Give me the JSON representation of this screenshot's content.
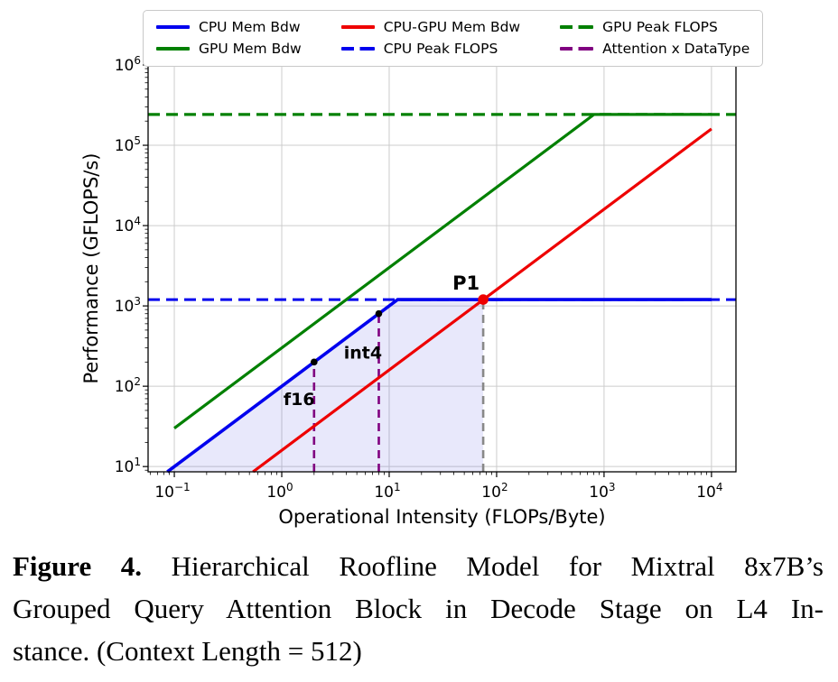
{
  "caption": {
    "label": "Figure 4.",
    "line1": "Hierarchical Roofline Model for Mixtral 8x7B’s",
    "line2": "Grouped Query Attention Block in Decode Stage on L4 In-",
    "line3": "stance. (Context Length = 512)"
  },
  "legend": {
    "items": [
      {
        "label": "CPU Mem Bdw",
        "color": "#0000ee",
        "dash": false
      },
      {
        "label": "CPU-GPU Mem Bdw",
        "color": "#ee0000",
        "dash": false
      },
      {
        "label": "GPU Peak FLOPS",
        "color": "#008000",
        "dash": true
      },
      {
        "label": "GPU Mem Bdw",
        "color": "#008000",
        "dash": false
      },
      {
        "label": "CPU Peak FLOPS",
        "color": "#0000ee",
        "dash": true
      },
      {
        "label": "Attention x DataType",
        "color": "#800080",
        "dash": true
      }
    ]
  },
  "chart_data": {
    "type": "line",
    "title": "",
    "xlabel": "Operational Intensity (FLOPs/Byte)",
    "ylabel": "Performance (GFLOPS/s)",
    "xscale": "log",
    "yscale": "log",
    "xlim": [
      0.057,
      16900
    ],
    "ylim": [
      8.6,
      1000000
    ],
    "x_tick_exponents": [
      -1,
      0,
      1,
      2,
      3,
      4
    ],
    "y_tick_exponents": [
      1,
      2,
      3,
      4,
      5,
      6
    ],
    "grid": true,
    "legend_position": "top-outside",
    "hardware": {
      "cpu_mem_bandwidth_GBps": 100,
      "gpu_mem_bandwidth_GBps": 300,
      "cpu_gpu_mem_bandwidth_GBps": 16,
      "cpu_peak_GFLOPS": 1200,
      "gpu_peak_GFLOPS": 242000
    },
    "series": [
      {
        "name": "GPU Peak FLOPS",
        "color": "#008000",
        "style": "dashed",
        "dash": "13 7",
        "width": 3.2,
        "points": [
          [
            0.057,
            242000
          ],
          [
            16900,
            242000
          ]
        ]
      },
      {
        "name": "CPU Peak FLOPS",
        "color": "#0000ee",
        "style": "dashed",
        "dash": "13 7",
        "width": 3,
        "points": [
          [
            0.057,
            1200
          ],
          [
            16900,
            1200
          ]
        ]
      },
      {
        "name": "Attention f16",
        "color": "#800080",
        "style": "dashed",
        "dash": "9 6",
        "width": 2.6,
        "points": [
          [
            2,
            8.6
          ],
          [
            2,
            200
          ]
        ]
      },
      {
        "name": "Attention int4",
        "color": "#800080",
        "style": "dashed",
        "dash": "9 6",
        "width": 2.6,
        "points": [
          [
            8,
            8.6
          ],
          [
            8,
            800
          ]
        ]
      },
      {
        "name": "P1 drop line",
        "color": "#888888",
        "style": "dashed",
        "dash": "9 6",
        "width": 2.6,
        "points": [
          [
            75,
            8.6
          ],
          [
            75,
            1200
          ]
        ]
      },
      {
        "name": "GPU Mem Bdw",
        "color": "#008000",
        "style": "solid",
        "width": 3.2,
        "points": [
          [
            0.1,
            30
          ],
          [
            807,
            242000
          ],
          [
            10000,
            242000
          ]
        ]
      },
      {
        "name": "CPU-GPU Mem Bdw",
        "color": "#ee0000",
        "style": "solid",
        "width": 3.2,
        "points": [
          [
            0.54,
            8.6
          ],
          [
            10000,
            160000
          ]
        ]
      },
      {
        "name": "CPU Mem Bdw",
        "color": "#0000ee",
        "style": "solid",
        "width": 3.6,
        "points": [
          [
            0.086,
            8.6
          ],
          [
            12,
            1200
          ],
          [
            10000,
            1200
          ]
        ]
      }
    ],
    "shaded_region": {
      "color": "#4444dd",
      "opacity": 0.12,
      "points": [
        [
          0.086,
          8.6
        ],
        [
          12,
          1200
        ],
        [
          75,
          1200
        ],
        [
          75,
          8.6
        ]
      ]
    },
    "markers": [
      {
        "label": "f16",
        "x": 2,
        "y": 200,
        "color": "#000000",
        "size": 3.8
      },
      {
        "label": "int4",
        "x": 8,
        "y": 800,
        "color": "#000000",
        "size": 3.8
      },
      {
        "label": "P1",
        "x": 75,
        "y": 1200,
        "color": "#ee0000",
        "size": 5.8
      }
    ],
    "annotations": [
      {
        "text": "f16",
        "x": 1.45,
        "y": 58,
        "size": 19
      },
      {
        "text": "int4",
        "x": 5.7,
        "y": 220,
        "size": 19
      },
      {
        "text": "P1",
        "x": 52,
        "y": 1600,
        "size": 21
      }
    ]
  }
}
